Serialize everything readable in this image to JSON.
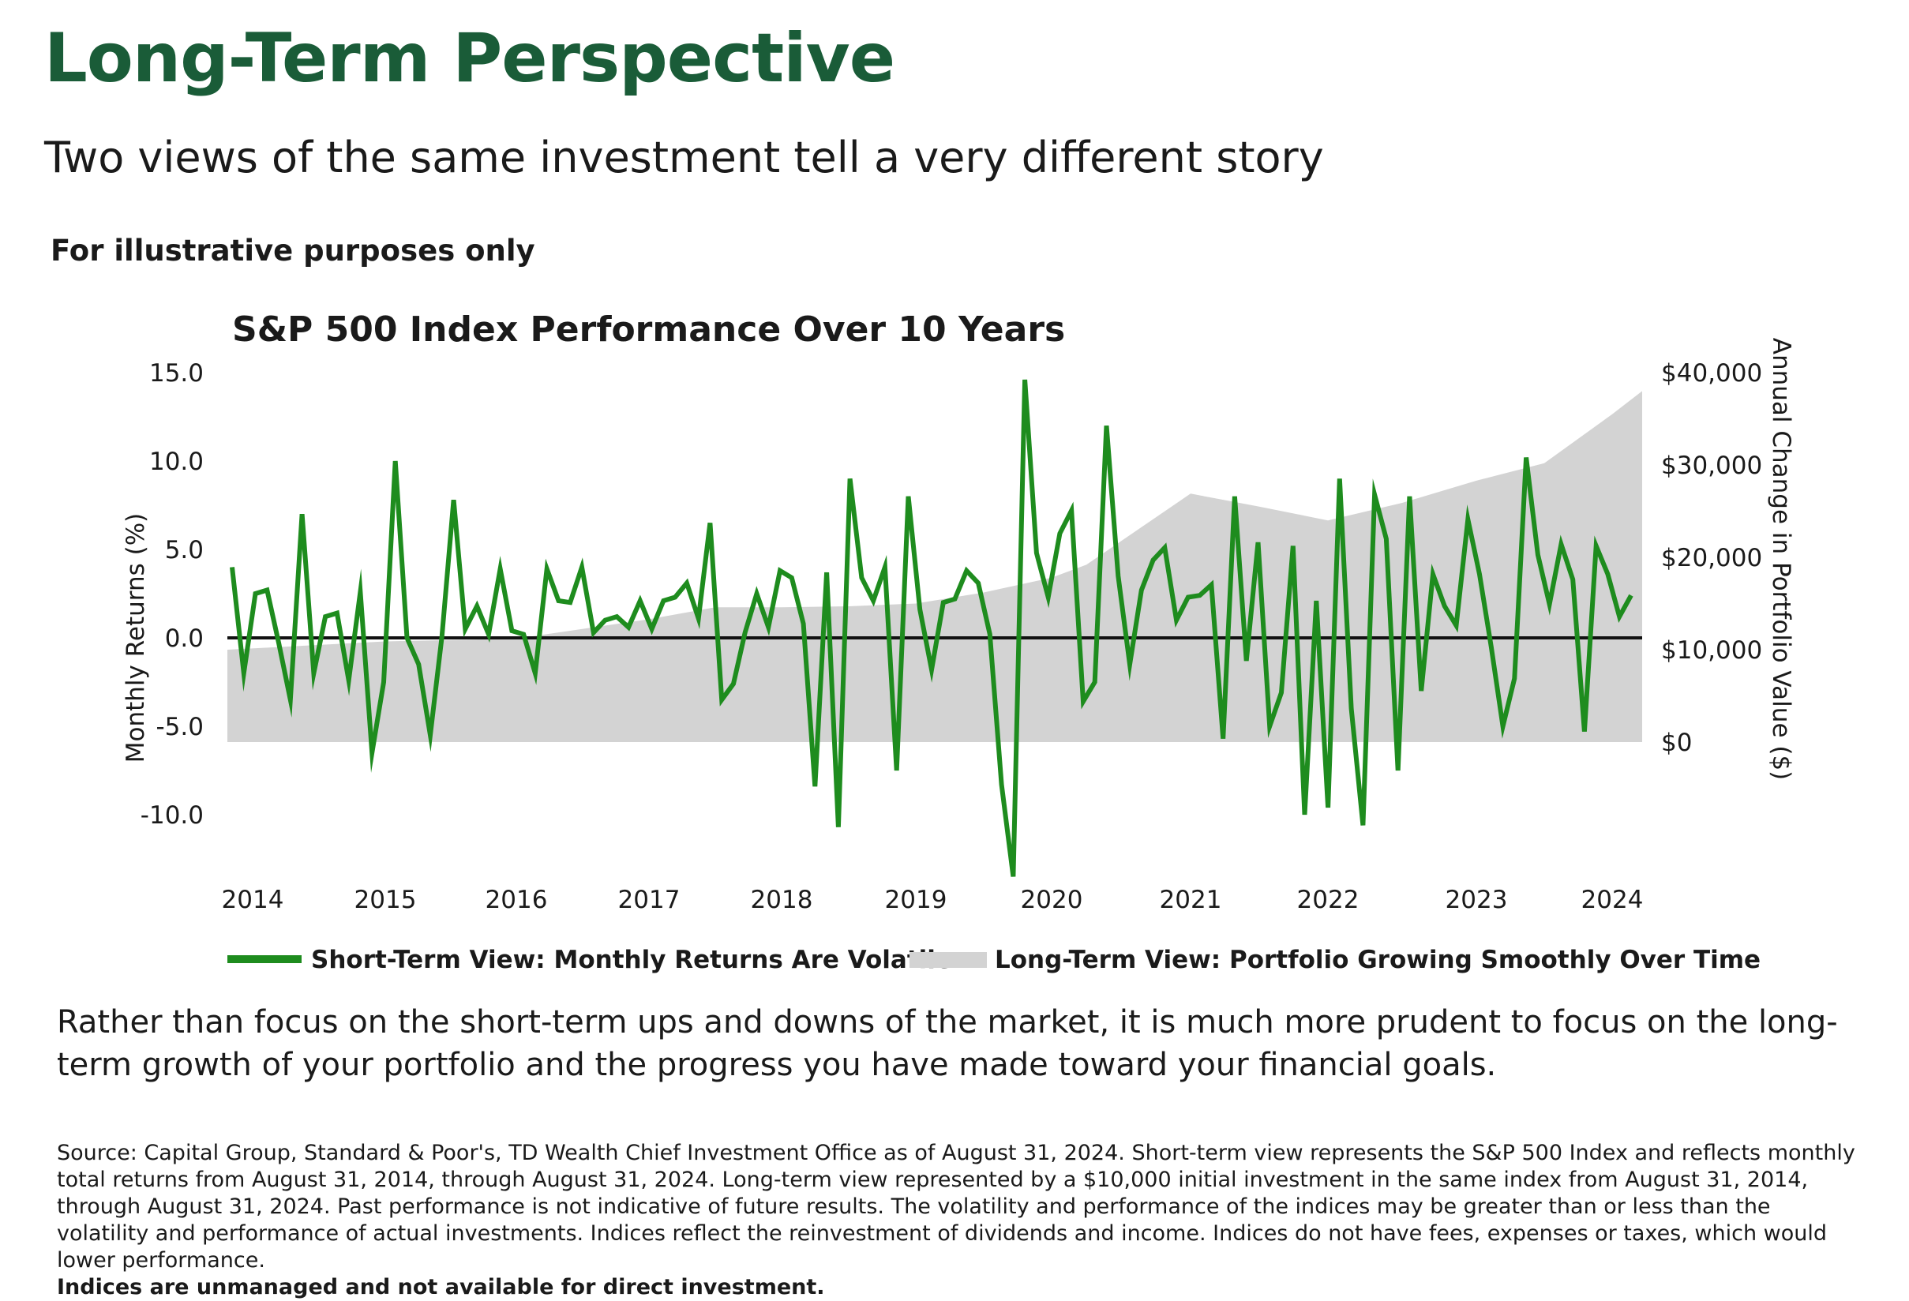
{
  "title": "Long-Term Perspective",
  "subtitle": "Two views of the same investment tell a very different story",
  "disclaimer": "For illustrative purposes only",
  "body_text": "Rather than focus on the short-term ups and downs of the market, it is much more prudent to focus on the long-term growth of your portfolio and the progress you have made toward your financial goals.",
  "source_text": "Source: Capital Group, Standard & Poor's, TD Wealth Chief Investment Office as of August 31, 2024. Short-term view represents the S&P 500 Index and reflects monthly total returns from August 31, 2014, through August 31, 2024. Long-term view represented by a $10,000 initial investment in the same index from August 31, 2014, through August 31, 2024. Past performance is not indicative of future results. The volatility and performance of the indices may be greater than or less than the volatility and performance of actual investments. Indices reflect the reinvestment of dividends and income. Indices do not have fees, expenses or taxes, which would lower performance.",
  "source_bold": "Indices are unmanaged and not available for direct investment.",
  "colors": {
    "title": "#1a5c38",
    "line": "#1e8c1e",
    "area": "#d3d3d3",
    "zero_line": "#111111"
  },
  "chart_data": {
    "type": "line",
    "title": "S&P 500 Index Performance Over 10 Years",
    "ylabel": "Monthly Returns (%)",
    "y2label": "Annual Change in Portfolio Value ($)",
    "ylim": [
      -14,
      15
    ],
    "y_ticks": [
      "15.0",
      "10.0",
      "5.0",
      "0.0",
      "-5.0",
      "-10.0"
    ],
    "y_tick_values": [
      15,
      10,
      5,
      0,
      -5,
      -10
    ],
    "y2_ticks": [
      "$40,000",
      "$30,000",
      "$20,000",
      "$10,000",
      "$0"
    ],
    "y2_tick_values": [
      40000,
      30000,
      20000,
      10000,
      0
    ],
    "x_ticks": [
      "2014",
      "2015",
      "2016",
      "2017",
      "2018",
      "2019",
      "2020",
      "2021",
      "2022",
      "2023",
      "2024"
    ],
    "x_tick_values": [
      2014.0,
      2015.0,
      2016.0,
      2017.0,
      2018.0,
      2019.0,
      2020.0,
      2021.0,
      2022.0,
      2023.0,
      2024.0
    ],
    "series": [
      {
        "name": "Short-Term View: Monthly Returns Are Volatile",
        "type": "line",
        "values": [
          4.0,
          -2.0,
          2.5,
          2.7,
          -0.3,
          -3.5,
          7.0,
          -2.0,
          1.2,
          1.4,
          -2.4,
          2.6,
          -6.5,
          -2.5,
          10.0,
          0.0,
          -1.5,
          -5.5,
          0.1,
          7.8,
          0.5,
          1.8,
          0.2,
          3.9,
          0.4,
          0.2,
          -2.0,
          3.9,
          2.1,
          2.0,
          4.0,
          0.3,
          1.0,
          1.2,
          0.6,
          2.1,
          0.5,
          2.1,
          2.3,
          3.1,
          1.1,
          6.5,
          -3.5,
          -2.6,
          0.3,
          2.5,
          0.6,
          3.8,
          3.4,
          0.8,
          -8.4,
          3.7,
          -10.7,
          9.0,
          3.4,
          2.1,
          4.0,
          -7.5,
          8.0,
          1.6,
          -1.8,
          2.0,
          2.2,
          3.8,
          3.1,
          0.2,
          -8.3,
          -13.5,
          14.6,
          4.8,
          2.3,
          5.9,
          7.2,
          -3.6,
          -2.5,
          12.0,
          3.5,
          -1.5,
          2.7,
          4.4,
          5.1,
          1.0,
          2.3,
          2.4,
          3.0,
          -5.7,
          8.0,
          -1.3,
          5.4,
          -5.0,
          -3.1,
          5.2,
          -10.0,
          2.1,
          -9.6,
          9.0,
          -4.0,
          -10.6,
          8.1,
          5.6,
          -7.5,
          8.0,
          -3.0,
          3.6,
          1.8,
          0.7,
          6.7,
          3.6,
          -0.5,
          -5.0,
          -2.3,
          10.2,
          4.7,
          1.9,
          5.3,
          3.3,
          -5.3,
          5.2,
          3.6,
          1.2,
          2.4
        ]
      },
      {
        "name": "Long-Term View: Portfolio Growing Smoothly Over Time",
        "type": "area",
        "x": [
          2014.0,
          2015.0,
          2016.0,
          2017.0,
          2017.5,
          2018.0,
          2018.5,
          2019.0,
          2019.5,
          2020.0,
          2020.25,
          2021.0,
          2021.5,
          2022.0,
          2022.5,
          2023.0,
          2023.5,
          2024.0,
          2024.25
        ],
        "values": [
          10000,
          10900,
          11200,
          13300,
          14600,
          14600,
          14700,
          15000,
          16200,
          17800,
          19200,
          26900,
          25500,
          24000,
          25900,
          28300,
          30200,
          35500,
          38000
        ]
      }
    ]
  }
}
